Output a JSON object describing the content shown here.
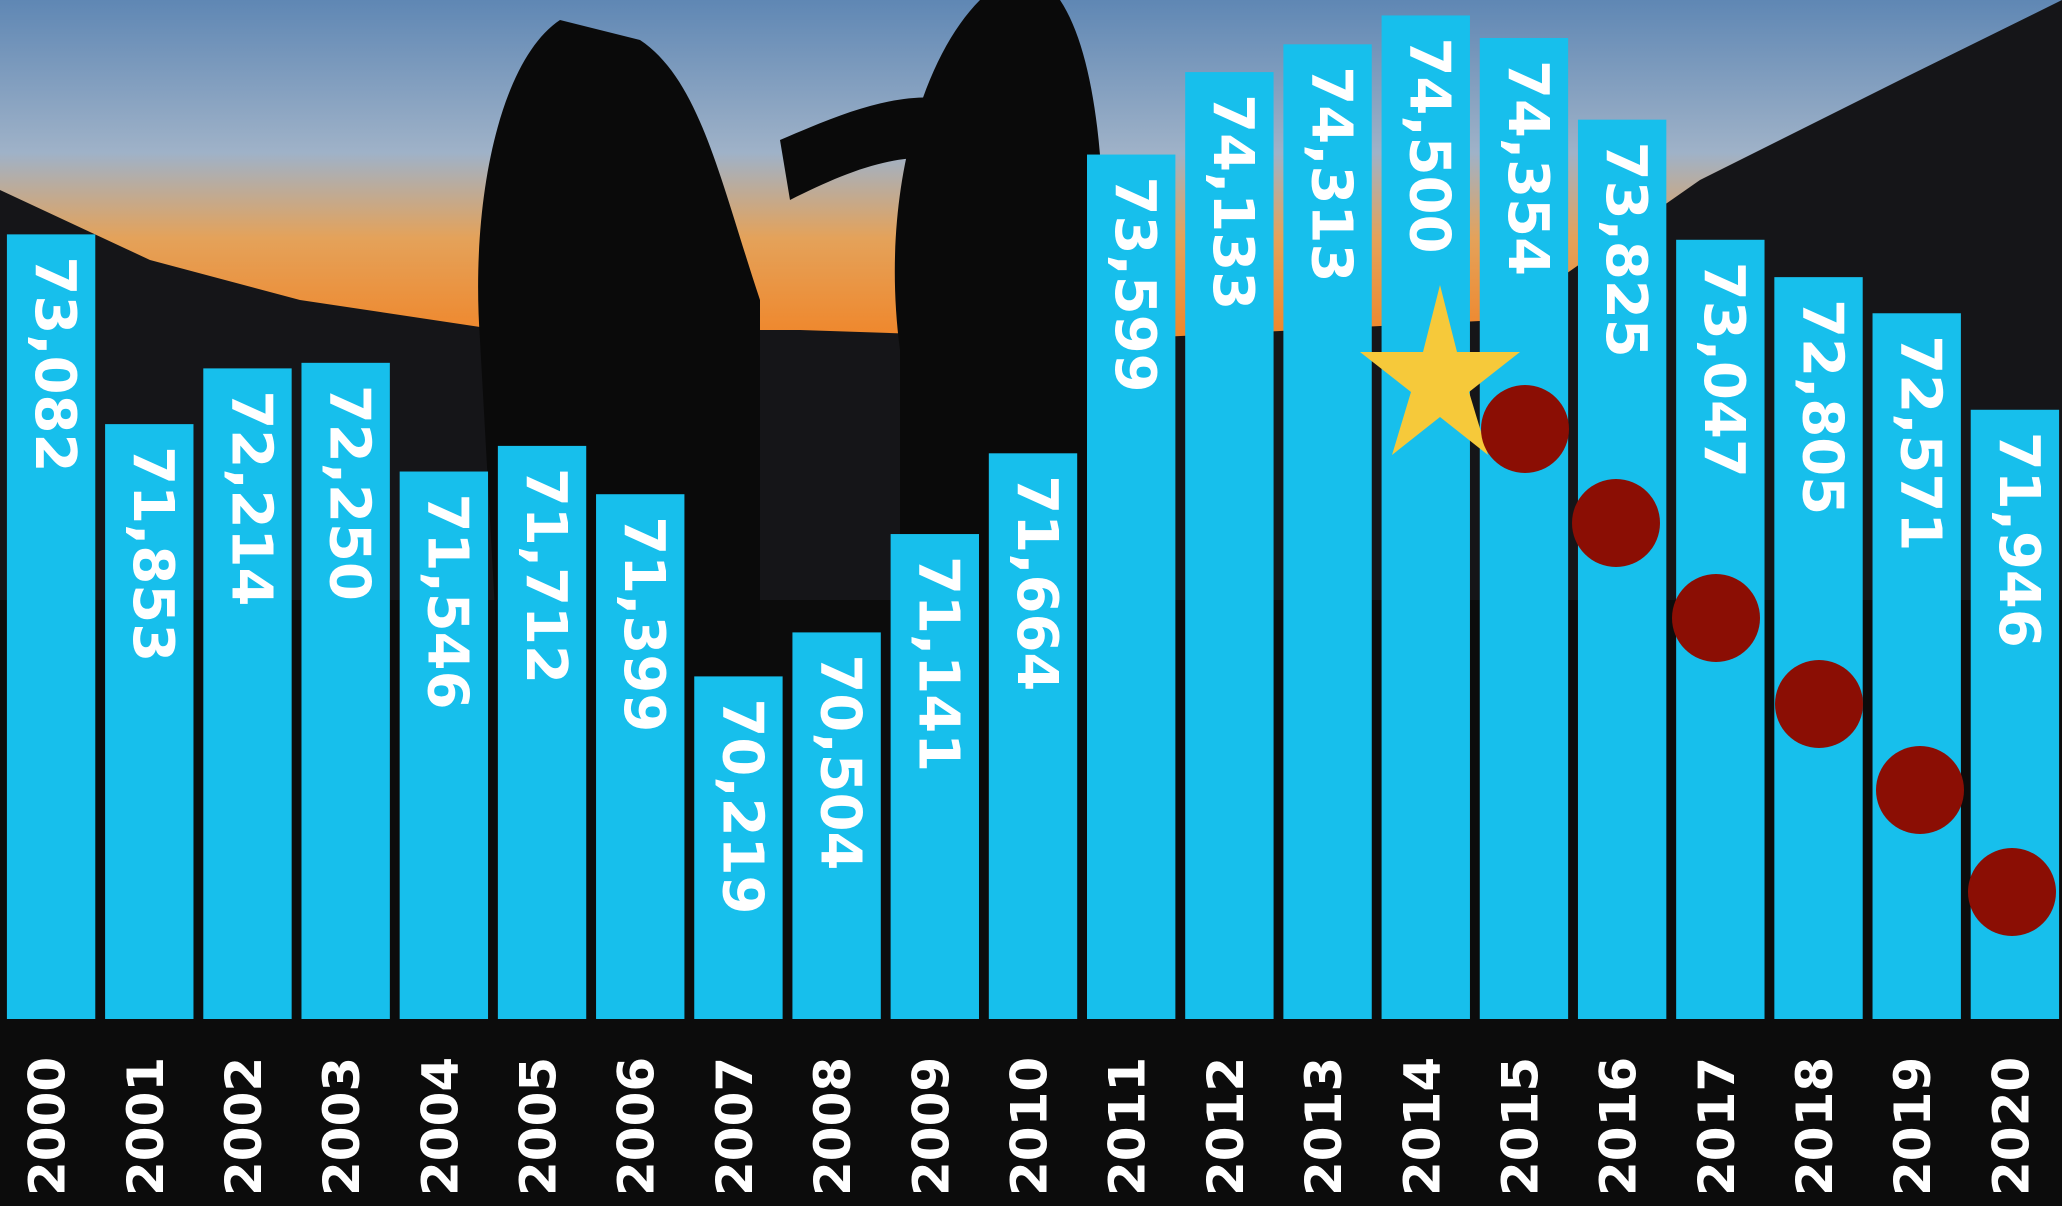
{
  "chart_data": {
    "type": "bar",
    "categories": [
      "2000",
      "2001",
      "2002",
      "2003",
      "2004",
      "2005",
      "2006",
      "2007",
      "2008",
      "2009",
      "2010",
      "2011",
      "2012",
      "2013",
      "2014",
      "2015",
      "2016",
      "2017",
      "2018",
      "2019",
      "2020"
    ],
    "values": [
      73082,
      71853,
      72214,
      72250,
      71546,
      71712,
      71399,
      70219,
      70504,
      71141,
      71664,
      73599,
      74133,
      74313,
      74500,
      74354,
      73825,
      73047,
      72805,
      72571,
      71946
    ],
    "value_labels": [
      "73,082",
      "71,853",
      "72,214",
      "72,250",
      "71,546",
      "71,712",
      "71,399",
      "70,219",
      "70,504",
      "71,141",
      "71,664",
      "73,599",
      "74,133",
      "74,313",
      "74,500",
      "74,354",
      "73,825",
      "73,047",
      "72,805",
      "72,571",
      "71,946"
    ],
    "color": "#17bfec",
    "ylim": [
      68000,
      74600
    ]
  }
}
